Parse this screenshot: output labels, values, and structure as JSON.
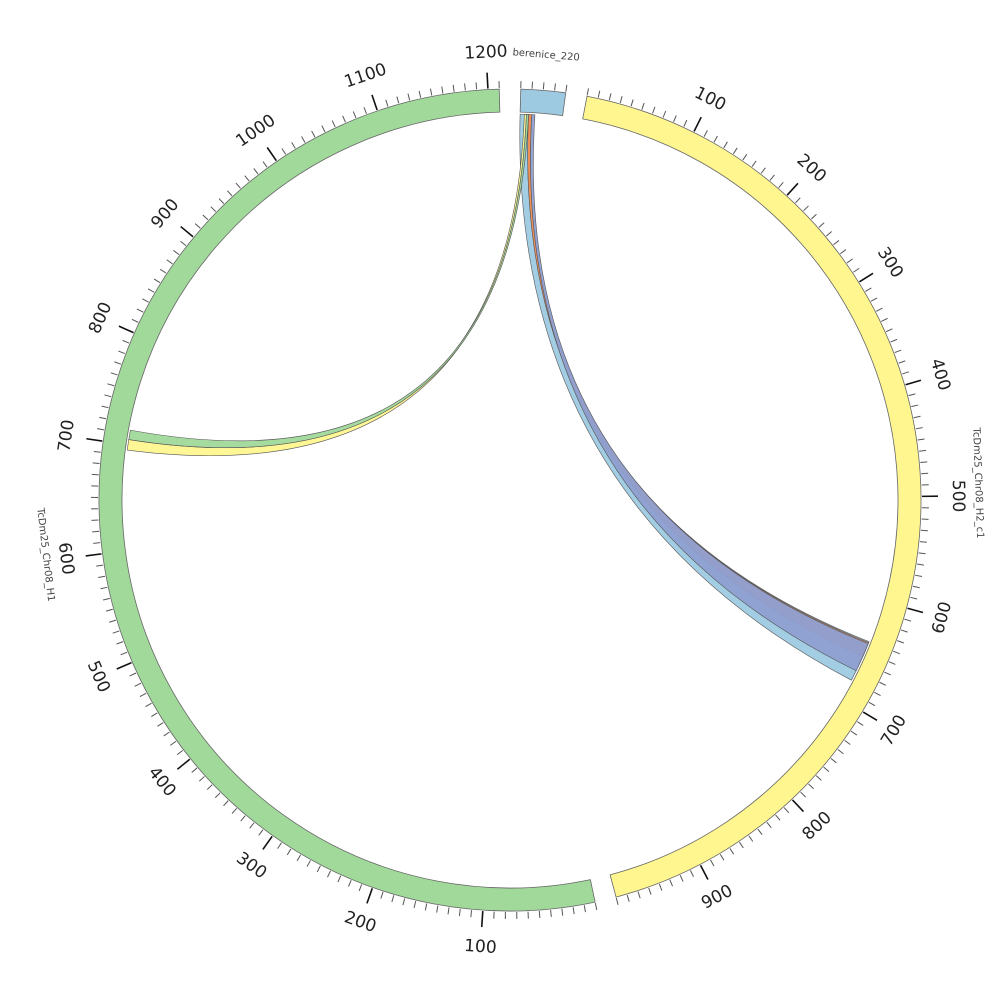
{
  "chart_data": {
    "type": "chord",
    "segments": [
      {
        "name": "berenice_220",
        "length": 40,
        "color": "#9ecae1",
        "tick_label_every": 0
      },
      {
        "name": "TcDm25_Chr08_H2_c1",
        "length": 980,
        "color": "#fff68f",
        "tick_label_every": 100
      },
      {
        "name": "TcDm25_Chr08_H1",
        "length": 1210,
        "color": "#a1d99b",
        "tick_label_every": 100
      }
    ],
    "ribbons": [
      {
        "from_segment": "berenice_220",
        "from_range": [
          0,
          8
        ],
        "to_segment": "TcDm25_Chr08_H2_c1",
        "to_range": [
          640,
          680
        ],
        "color": "#9ecae1"
      },
      {
        "from_segment": "berenice_220",
        "from_range": [
          8,
          11
        ],
        "to_segment": "TcDm25_Chr08_H2_c1",
        "to_range": [
          641,
          655
        ],
        "color": "#ef8a50"
      },
      {
        "from_segment": "berenice_220",
        "from_range": [
          11,
          14
        ],
        "to_segment": "TcDm25_Chr08_H2_c1",
        "to_range": [
          642,
          670
        ],
        "color": "#8e9fd1"
      },
      {
        "from_segment": "berenice_220",
        "from_range": [
          4,
          6
        ],
        "to_segment": "TcDm25_Chr08_H1",
        "to_range": [
          695,
          705
        ],
        "color": "#fff68f"
      },
      {
        "from_segment": "berenice_220",
        "from_range": [
          6,
          8
        ],
        "to_segment": "TcDm25_Chr08_H1",
        "to_range": [
          705,
          714
        ],
        "color": "#a1d99b"
      }
    ]
  }
}
